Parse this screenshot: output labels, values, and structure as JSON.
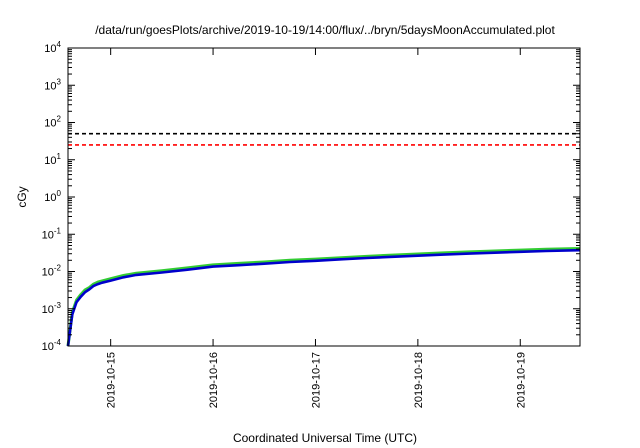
{
  "chart_data": {
    "type": "line",
    "title": "/data/run/goesPlots/archive/2019-10-19/14:00/flux/../bryn/5daysMoonAccumulated.plot",
    "xlabel": "Coordinated Universal Time (UTC)",
    "ylabel": "cGy",
    "y_scale": "log",
    "ylim": [
      0.0001,
      10000
    ],
    "xlim": [
      "2019-10-14T14:00",
      "2019-10-19T14:00"
    ],
    "x_tick_labels": [
      "2019-10-15",
      "2019-10-16",
      "2019-10-17",
      "2019-10-18",
      "2019-10-19"
    ],
    "y_tick_labels": [
      {
        "base": "10",
        "exp": "-4"
      },
      {
        "base": "10",
        "exp": "-3"
      },
      {
        "base": "10",
        "exp": "-2"
      },
      {
        "base": "10",
        "exp": "-1"
      },
      {
        "base": "10",
        "exp": "0"
      },
      {
        "base": "10",
        "exp": "1"
      },
      {
        "base": "10",
        "exp": "2"
      },
      {
        "base": "10",
        "exp": "3"
      },
      {
        "base": "10",
        "exp": "4"
      }
    ],
    "grid": false,
    "reference_lines": [
      {
        "y": 50,
        "color": "#000000",
        "style": "dashed"
      },
      {
        "y": 25,
        "color": "#ff0000",
        "style": "dashed"
      }
    ],
    "series": [
      {
        "color": "#33cc33",
        "x": [
          "2019-10-14T14:00",
          "2019-10-14T15:00",
          "2019-10-14T16:00",
          "2019-10-14T17:00",
          "2019-10-14T18:00",
          "2019-10-14T19:00",
          "2019-10-14T20:00",
          "2019-10-14T21:00",
          "2019-10-14T22:00",
          "2019-10-15T00:00",
          "2019-10-15T03:00",
          "2019-10-15T06:00",
          "2019-10-15T12:00",
          "2019-10-15T18:00",
          "2019-10-16T00:00",
          "2019-10-16T06:00",
          "2019-10-16T12:00",
          "2019-10-16T18:00",
          "2019-10-17T00:00",
          "2019-10-17T06:00",
          "2019-10-17T12:00",
          "2019-10-17T18:00",
          "2019-10-18T00:00",
          "2019-10-18T06:00",
          "2019-10-18T12:00",
          "2019-10-18T18:00",
          "2019-10-19T00:00",
          "2019-10-19T06:00",
          "2019-10-19T14:00"
        ],
        "values": [
          0.0001,
          0.0008,
          0.0017,
          0.0024,
          0.0032,
          0.0037,
          0.0046,
          0.0052,
          0.0056,
          0.0064,
          0.0078,
          0.009,
          0.0105,
          0.0125,
          0.015,
          0.0165,
          0.018,
          0.02,
          0.0215,
          0.0235,
          0.0255,
          0.0275,
          0.0295,
          0.0315,
          0.0335,
          0.0355,
          0.0375,
          0.0395,
          0.0415
        ]
      },
      {
        "color": "#0000cc",
        "x": [
          "2019-10-14T14:00",
          "2019-10-14T15:00",
          "2019-10-14T16:00",
          "2019-10-14T17:00",
          "2019-10-14T18:00",
          "2019-10-14T19:00",
          "2019-10-14T20:00",
          "2019-10-14T21:00",
          "2019-10-14T22:00",
          "2019-10-15T00:00",
          "2019-10-15T03:00",
          "2019-10-15T06:00",
          "2019-10-15T12:00",
          "2019-10-15T18:00",
          "2019-10-16T00:00",
          "2019-10-16T06:00",
          "2019-10-16T12:00",
          "2019-10-16T18:00",
          "2019-10-17T00:00",
          "2019-10-17T06:00",
          "2019-10-17T12:00",
          "2019-10-17T18:00",
          "2019-10-18T00:00",
          "2019-10-18T06:00",
          "2019-10-18T12:00",
          "2019-10-18T18:00",
          "2019-10-19T00:00",
          "2019-10-19T06:00",
          "2019-10-19T14:00"
        ],
        "values": [
          0.0001,
          0.0007,
          0.0015,
          0.0021,
          0.0028,
          0.0033,
          0.0041,
          0.0046,
          0.005,
          0.0057,
          0.007,
          0.0081,
          0.0094,
          0.0112,
          0.0135,
          0.0148,
          0.0162,
          0.018,
          0.0194,
          0.0212,
          0.023,
          0.0248,
          0.0266,
          0.0284,
          0.0302,
          0.032,
          0.0338,
          0.0356,
          0.0374
        ]
      }
    ]
  }
}
